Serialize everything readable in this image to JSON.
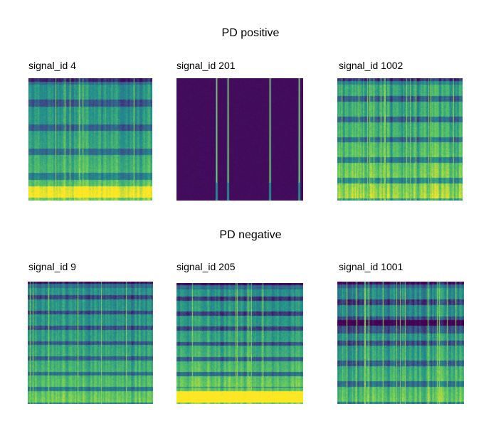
{
  "groups": [
    {
      "title": "PD positive",
      "panels": [
        {
          "label": "signal_id 4",
          "pattern": "dense",
          "seed": 4
        },
        {
          "label": "signal_id 201",
          "pattern": "sparse",
          "seed": 201
        },
        {
          "label": "signal_id 1002",
          "pattern": "striped",
          "seed": 1002
        }
      ]
    },
    {
      "title": "PD negative",
      "panels": [
        {
          "label": "signal_id 9",
          "pattern": "banded",
          "seed": 9
        },
        {
          "label": "signal_id 205",
          "pattern": "banded-bright",
          "seed": 205
        },
        {
          "label": "signal_id 1001",
          "pattern": "striped-dark",
          "seed": 1001
        }
      ]
    }
  ],
  "colormap": [
    "#440154",
    "#3b528b",
    "#21918c",
    "#5ec962",
    "#fde725"
  ]
}
